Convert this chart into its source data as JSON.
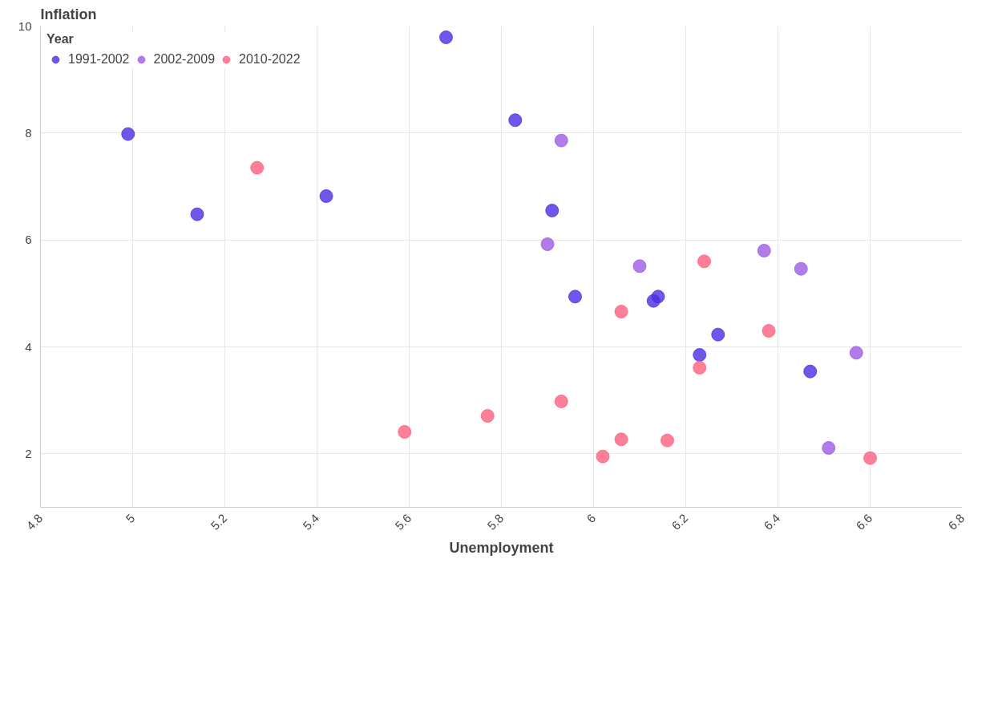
{
  "chart_data": {
    "type": "scatter",
    "xlabel": "Unemployment",
    "ylabel": "Inflation",
    "legend_title": "Year",
    "xlim": [
      4.8,
      6.8
    ],
    "xticks": [
      4.8,
      5,
      5.2,
      5.4,
      5.6,
      5.8,
      6,
      6.2,
      6.4,
      6.6,
      6.8
    ],
    "ylim": [
      1,
      10
    ],
    "yticks": [
      2,
      4,
      6,
      8,
      10
    ],
    "grid": true,
    "legend": "top left",
    "marker": "circle",
    "series": [
      {
        "name": "1991-2002",
        "color": "#4b2ee3",
        "x": [
          4.99,
          5.14,
          5.42,
          5.68,
          5.83,
          5.91,
          5.96,
          6.13,
          6.14,
          6.23,
          6.27,
          6.47
        ],
        "values": [
          7.98,
          6.48,
          6.82,
          9.79,
          8.24,
          6.55,
          4.94,
          4.86,
          4.94,
          3.85,
          4.23,
          3.54
        ]
      },
      {
        "name": "2002-2009",
        "color": "#9b5be3",
        "x": [
          5.93,
          5.9,
          6.1,
          6.37,
          6.45,
          6.57,
          6.51
        ],
        "values": [
          7.86,
          5.92,
          5.51,
          5.8,
          5.46,
          3.89,
          2.11
        ]
      },
      {
        "name": "2010-2022",
        "color": "#ff5f80",
        "x": [
          5.27,
          5.59,
          5.77,
          5.93,
          6.02,
          6.06,
          6.06,
          6.16,
          6.23,
          6.24,
          6.38,
          6.6
        ],
        "values": [
          7.35,
          2.41,
          2.71,
          2.98,
          1.95,
          2.27,
          4.66,
          2.25,
          3.61,
          5.6,
          4.3,
          1.92
        ]
      }
    ]
  }
}
